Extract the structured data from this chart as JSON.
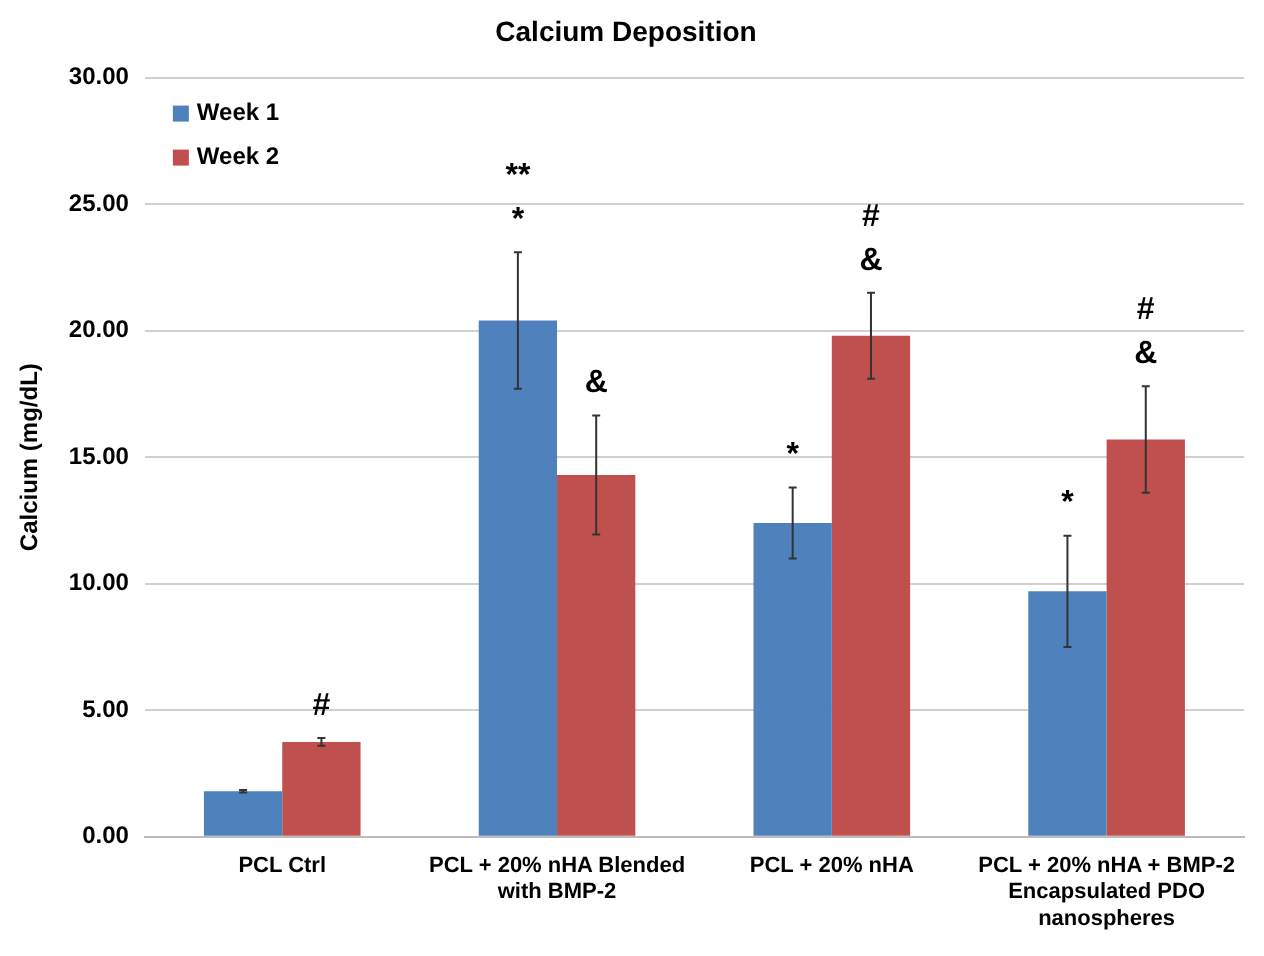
{
  "chart_data": {
    "type": "bar",
    "title": "Calcium Deposition",
    "ylabel": "Calcium (mg/dL)",
    "categories": [
      "PCL Ctrl",
      "PCL + 20% nHA Blended with BMP-2",
      "PCL + 20% nHA",
      "PCL + 20% nHA + BMP-2 Encapsulated PDO nanospheres"
    ],
    "series": [
      {
        "name": "Week 1",
        "color": "#4f81bd",
        "values": [
          1.8,
          20.4,
          12.4,
          9.7
        ],
        "errors": [
          0.05,
          2.7,
          1.4,
          2.2
        ]
      },
      {
        "name": "Week 2",
        "color": "#c0504d",
        "values": [
          3.75,
          14.3,
          19.8,
          15.7
        ],
        "errors": [
          0.15,
          2.35,
          1.7,
          2.1
        ]
      }
    ],
    "ylim": [
      0,
      30
    ],
    "yticks": [
      {
        "value": 0,
        "label": "0.00"
      },
      {
        "value": 5,
        "label": "5.00"
      },
      {
        "value": 10,
        "label": "10.00"
      },
      {
        "value": 15,
        "label": "15.00"
      },
      {
        "value": 20,
        "label": "20.00"
      },
      {
        "value": 25,
        "label": "25.00"
      },
      {
        "value": 30,
        "label": "30.00"
      }
    ],
    "grid": "y",
    "legend": "top left",
    "annotations": [
      {
        "text": "#",
        "x": "PCL Ctrl",
        "y": 3.75
      },
      {
        "text": "**\n*",
        "x": "PCL + 20% nHA Blended with BMP-2",
        "y": 20.4
      },
      {
        "text": "&",
        "x": "PCL + 20% nHA Blended with BMP-2",
        "y": 14.3
      },
      {
        "text": "*",
        "x": "PCL + 20% nHA",
        "y": 12.4
      },
      {
        "text": "#\n&",
        "x": "PCL + 20% nHA",
        "y": 19.8
      },
      {
        "text": "*",
        "x": "PCL + 20% nHA + BMP-2 Encapsulated PDO nanospheres",
        "y": 9.7
      },
      {
        "text": "#\n&",
        "x": "PCL + 20% nHA + BMP-2 Encapsulated PDO nanospheres",
        "y": 15.7
      }
    ]
  }
}
